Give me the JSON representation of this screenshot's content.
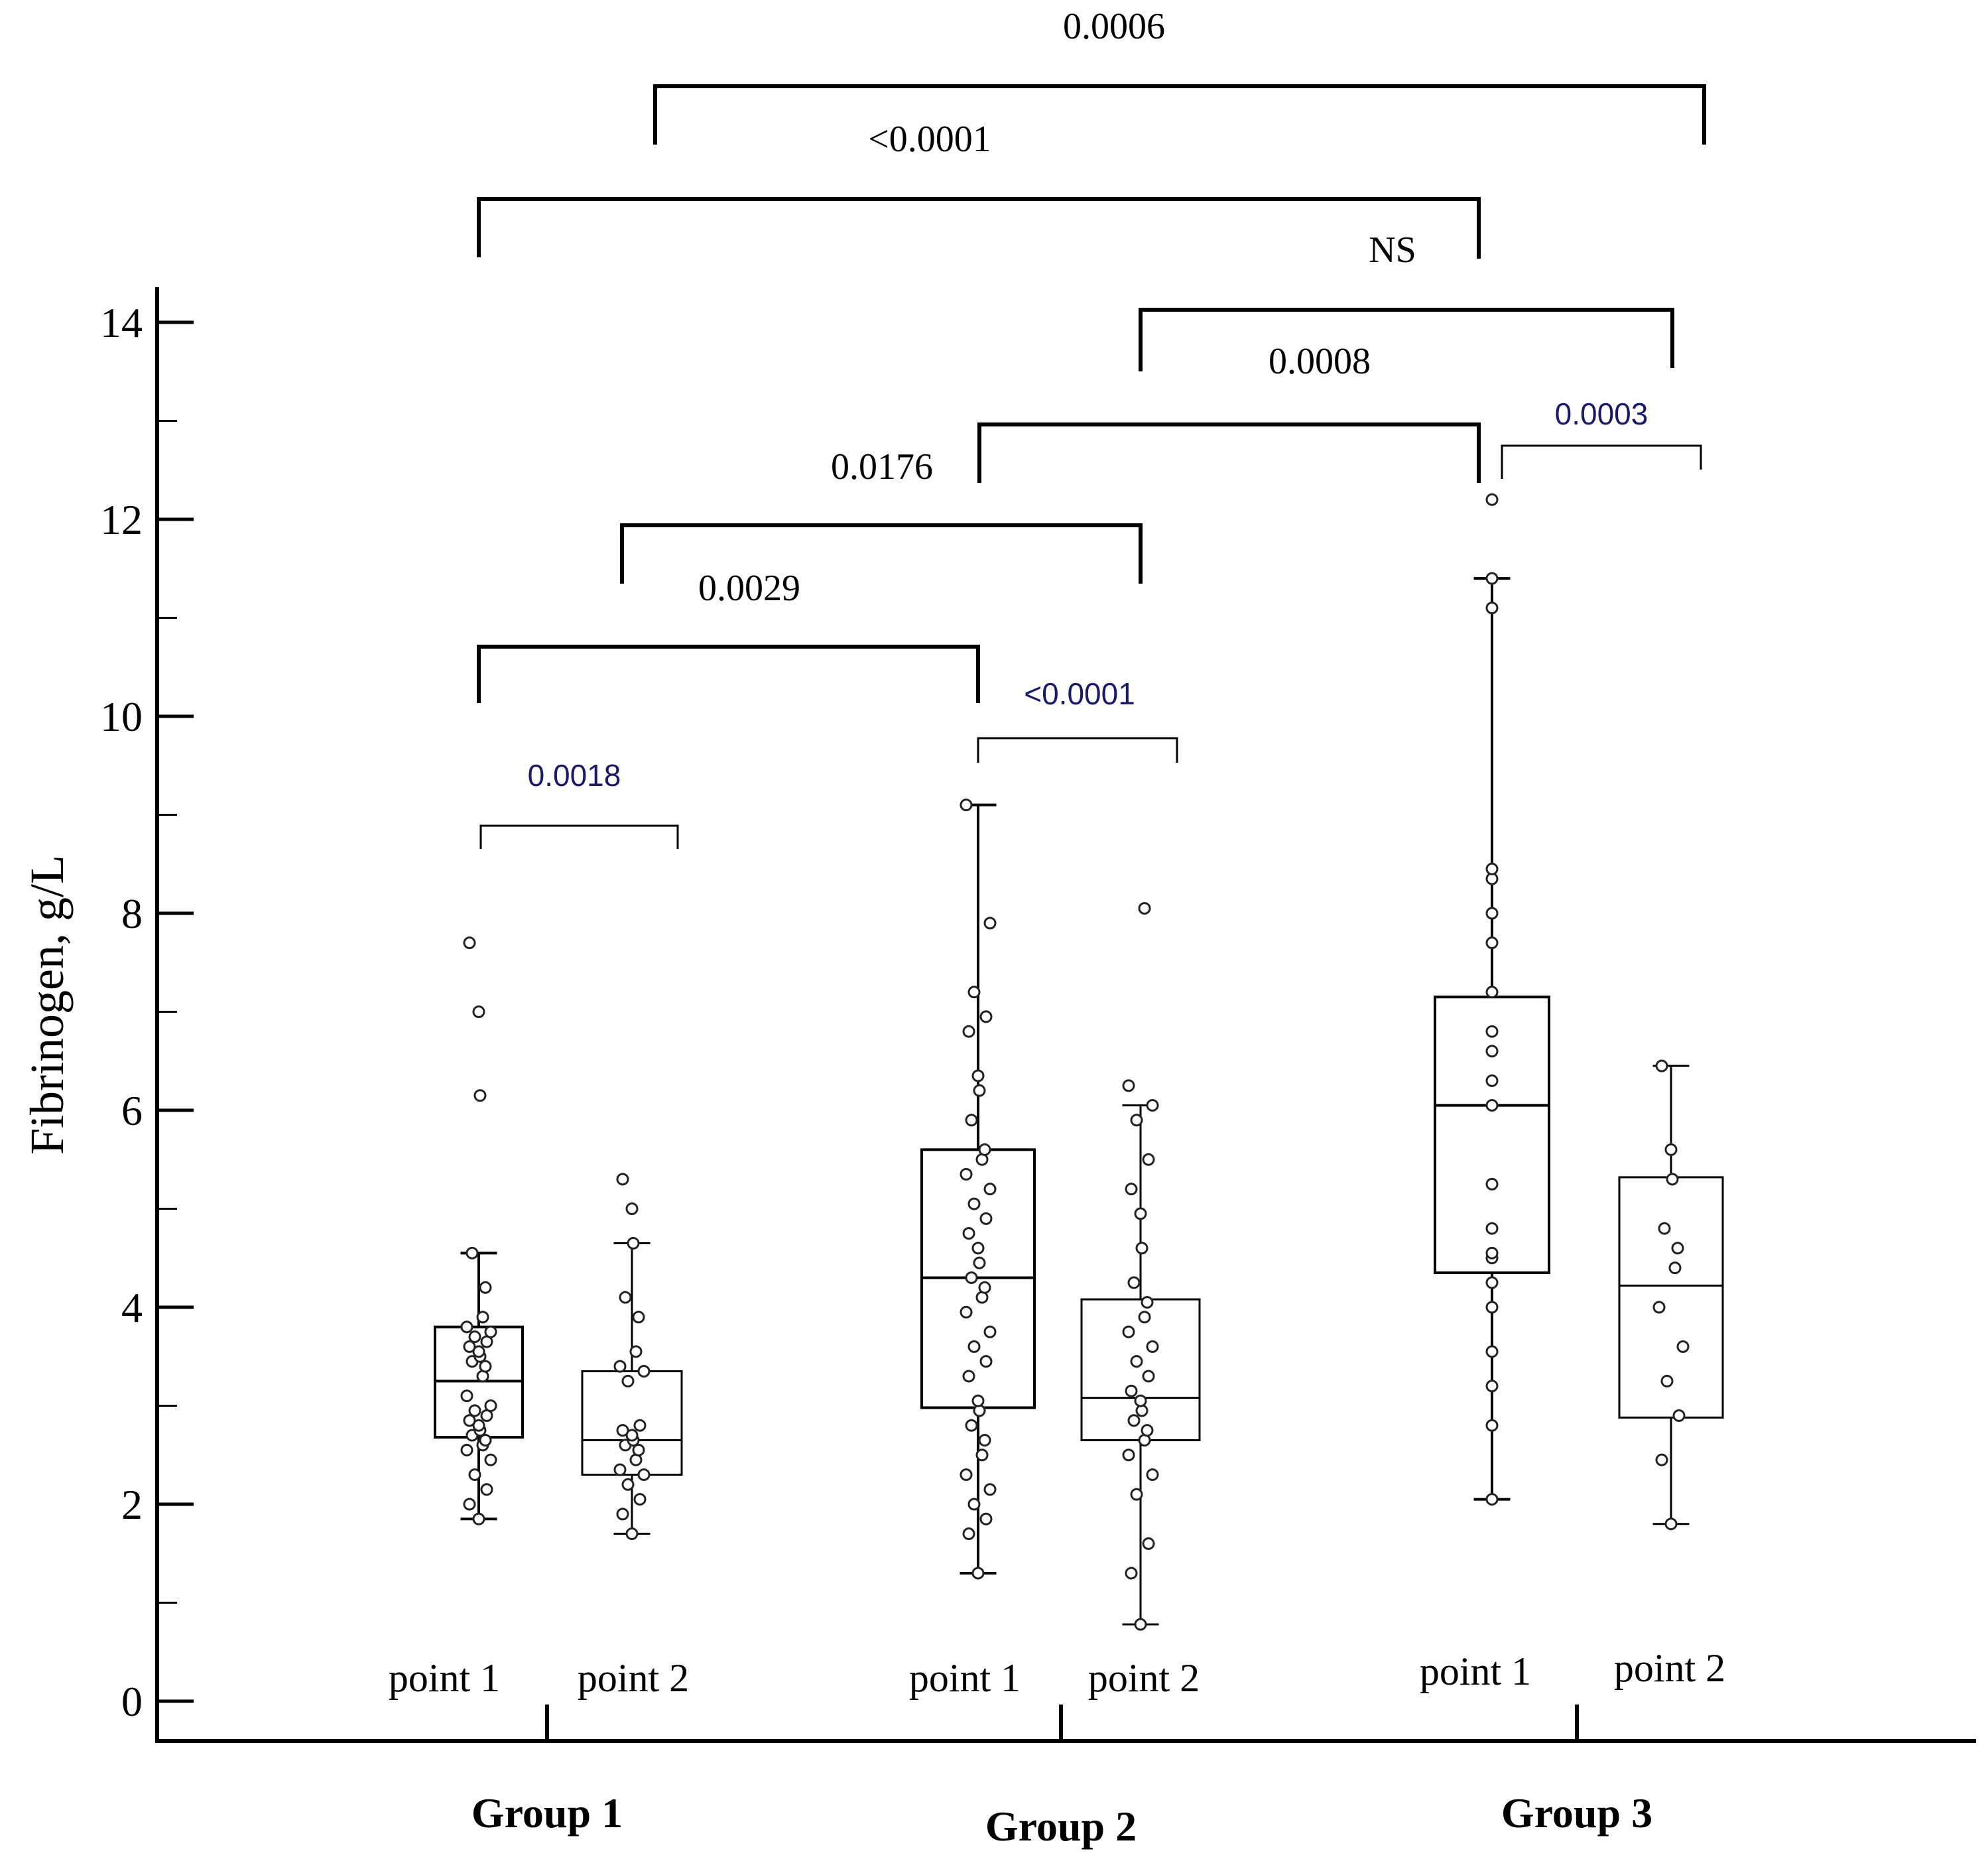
{
  "chart_data": {
    "type": "box",
    "ylabel": "Fibrinogen, g/L",
    "ylim": [
      0,
      14
    ],
    "yticks": [
      0,
      2,
      4,
      6,
      8,
      10,
      12,
      14
    ],
    "ytick_labels": [
      "0",
      "2",
      "4",
      "6",
      "8",
      "10",
      "12",
      "14"
    ],
    "groups": [
      {
        "label": "Group 1",
        "points": [
          "point 1",
          "point 2"
        ]
      },
      {
        "label": "Group 2",
        "points": [
          "point 1",
          "point 2"
        ]
      },
      {
        "label": "Group 3",
        "points": [
          "point 1",
          "point 2"
        ]
      }
    ],
    "boxes": [
      {
        "group": "Group 1",
        "point": "point 1",
        "whisker_low": 1.85,
        "q1": 2.68,
        "median": 3.25,
        "q3": 3.8,
        "whisker_high": 4.55,
        "points": [
          1.85,
          2.0,
          2.15,
          2.3,
          2.45,
          2.55,
          2.6,
          2.65,
          2.7,
          2.75,
          2.8,
          2.85,
          2.9,
          2.95,
          3.0,
          3.1,
          3.3,
          3.4,
          3.45,
          3.5,
          3.55,
          3.6,
          3.65,
          3.7,
          3.75,
          3.8,
          3.9,
          4.2,
          4.55,
          6.15,
          7.0,
          7.7
        ]
      },
      {
        "group": "Group 1",
        "point": "point 2",
        "whisker_low": 1.7,
        "q1": 2.3,
        "median": 2.65,
        "q3": 3.35,
        "whisker_high": 4.65,
        "points": [
          1.7,
          1.9,
          2.05,
          2.2,
          2.3,
          2.35,
          2.45,
          2.55,
          2.6,
          2.65,
          2.7,
          2.75,
          2.8,
          3.25,
          3.35,
          3.4,
          3.55,
          3.9,
          4.1,
          4.65,
          5.0,
          5.3
        ]
      },
      {
        "group": "Group 2",
        "point": "point 1",
        "whisker_low": 1.3,
        "q1": 2.98,
        "median": 4.3,
        "q3": 5.6,
        "whisker_high": 9.1,
        "points": [
          1.3,
          1.7,
          1.85,
          2.0,
          2.15,
          2.3,
          2.5,
          2.65,
          2.8,
          2.95,
          3.05,
          3.3,
          3.45,
          3.6,
          3.75,
          3.95,
          4.1,
          4.2,
          4.3,
          4.45,
          4.6,
          4.75,
          4.9,
          5.05,
          5.2,
          5.35,
          5.5,
          5.6,
          5.9,
          6.2,
          6.35,
          6.8,
          6.95,
          7.2,
          7.9,
          9.1
        ]
      },
      {
        "group": "Group 2",
        "point": "point 2",
        "whisker_low": 0.78,
        "q1": 2.65,
        "median": 3.08,
        "q3": 4.08,
        "whisker_high": 6.05,
        "points": [
          0.78,
          1.3,
          1.6,
          2.1,
          2.3,
          2.5,
          2.65,
          2.75,
          2.85,
          2.95,
          3.05,
          3.15,
          3.3,
          3.45,
          3.6,
          3.75,
          3.9,
          4.05,
          4.25,
          4.6,
          4.95,
          5.2,
          5.5,
          5.9,
          6.05,
          6.25,
          8.05
        ]
      },
      {
        "group": "Group 3",
        "point": "point 1",
        "whisker_low": 2.05,
        "q1": 4.35,
        "median": 6.05,
        "q3": 7.15,
        "whisker_high": 11.4,
        "points": [
          2.05,
          2.8,
          3.2,
          3.55,
          4.0,
          4.25,
          4.5,
          4.55,
          4.8,
          5.25,
          6.05,
          6.3,
          6.6,
          6.8,
          7.2,
          7.7,
          8.0,
          8.35,
          8.45,
          11.1,
          11.4,
          12.2
        ]
      },
      {
        "group": "Group 3",
        "point": "point 2",
        "whisker_low": 1.8,
        "q1": 2.88,
        "median": 4.22,
        "q3": 5.32,
        "whisker_high": 6.45,
        "points": [
          1.8,
          2.45,
          2.9,
          3.25,
          3.6,
          4.0,
          4.4,
          4.6,
          4.8,
          5.3,
          5.6,
          6.45
        ]
      }
    ],
    "comparisons": [
      {
        "from": "Group 1 point 1",
        "to": "Group 1 point 2",
        "p": "0.0018",
        "style": "thin"
      },
      {
        "from": "Group 2 point 1",
        "to": "Group 2 point 2",
        "p": "<0.0001",
        "style": "thin"
      },
      {
        "from": "Group 3 point 1",
        "to": "Group 3 point 2",
        "p": "0.0003",
        "style": "thin"
      },
      {
        "from": "Group 1 point 1",
        "to": "Group 2 point 1",
        "p": "0.0029",
        "style": "thick"
      },
      {
        "from": "Group 1 point 2",
        "to": "Group 2 point 2",
        "p": "0.0176",
        "style": "thick"
      },
      {
        "from": "Group 2 point 1",
        "to": "Group 3 point 1",
        "p": "0.0008",
        "style": "thick"
      },
      {
        "from": "Group 2 point 2",
        "to": "Group 3 point 2",
        "p": "NS",
        "style": "thick"
      },
      {
        "from": "Group 1 point 1",
        "to": "Group 3 point 1",
        "p": "<0.0001",
        "style": "thick"
      },
      {
        "from": "Group 1 point 2",
        "to": "Group 3 point 2",
        "p": "0.0006",
        "style": "thick"
      }
    ]
  }
}
